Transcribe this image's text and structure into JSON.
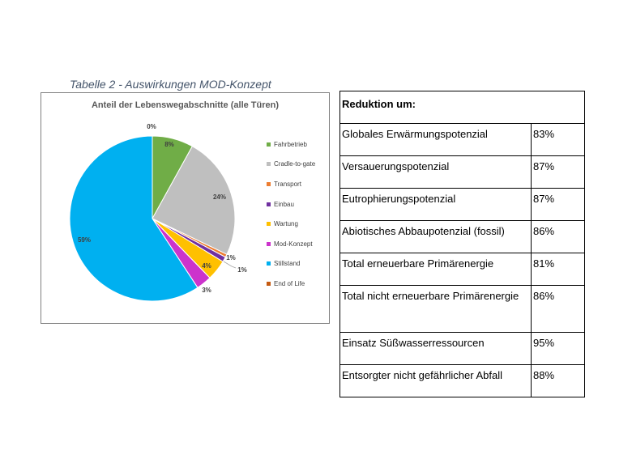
{
  "caption": "Tabelle 2 - Auswirkungen MOD-Konzept",
  "chart_data": {
    "type": "pie",
    "title": "Anteil der Lebenswegabschnitte (alle Türen)",
    "slices": [
      {
        "label": "Fahrbetrieb",
        "value": 8,
        "display": "8%",
        "color": "#70ad47"
      },
      {
        "label": "Cradle-to-gate",
        "value": 24,
        "display": "24%",
        "color": "#bfbfbf"
      },
      {
        "label": "Transport",
        "value": 0.6,
        "display": "1%",
        "color": "#ed7d31"
      },
      {
        "label": "Einbau",
        "value": 1,
        "display": "1%",
        "color": "#7030a0"
      },
      {
        "label": "Wartung",
        "value": 4,
        "display": "4%",
        "color": "#ffc000"
      },
      {
        "label": "Mod-Konzept",
        "value": 3,
        "display": "3%",
        "color": "#cc33cc"
      },
      {
        "label": "Stillstand",
        "value": 59,
        "display": "59%",
        "color": "#00b0f0"
      },
      {
        "label": "End of Life",
        "value": 0,
        "display": "0%",
        "color": "#c55a11"
      }
    ],
    "legend_position": "right"
  },
  "table": {
    "header": "Reduktion um:",
    "rows": [
      {
        "label": "Globales Erwärmungspotenzial",
        "value": "83%"
      },
      {
        "label": "Versauerungspotenzial",
        "value": "87%"
      },
      {
        "label": "Eutrophierungspotenzial",
        "value": "87%"
      },
      {
        "label": "Abiotisches Abbaupotenzial (fossil)",
        "value": "86%"
      },
      {
        "label": "Total erneuerbare Primärenergie",
        "value": "81%"
      },
      {
        "label": "Total nicht erneuerbare Primärenergie",
        "value": "86%"
      },
      {
        "label": "Einsatz Süßwasserressourcen",
        "value": "95%"
      },
      {
        "label": "Entsorgter nicht gefährlicher Abfall",
        "value": "88%"
      }
    ]
  }
}
